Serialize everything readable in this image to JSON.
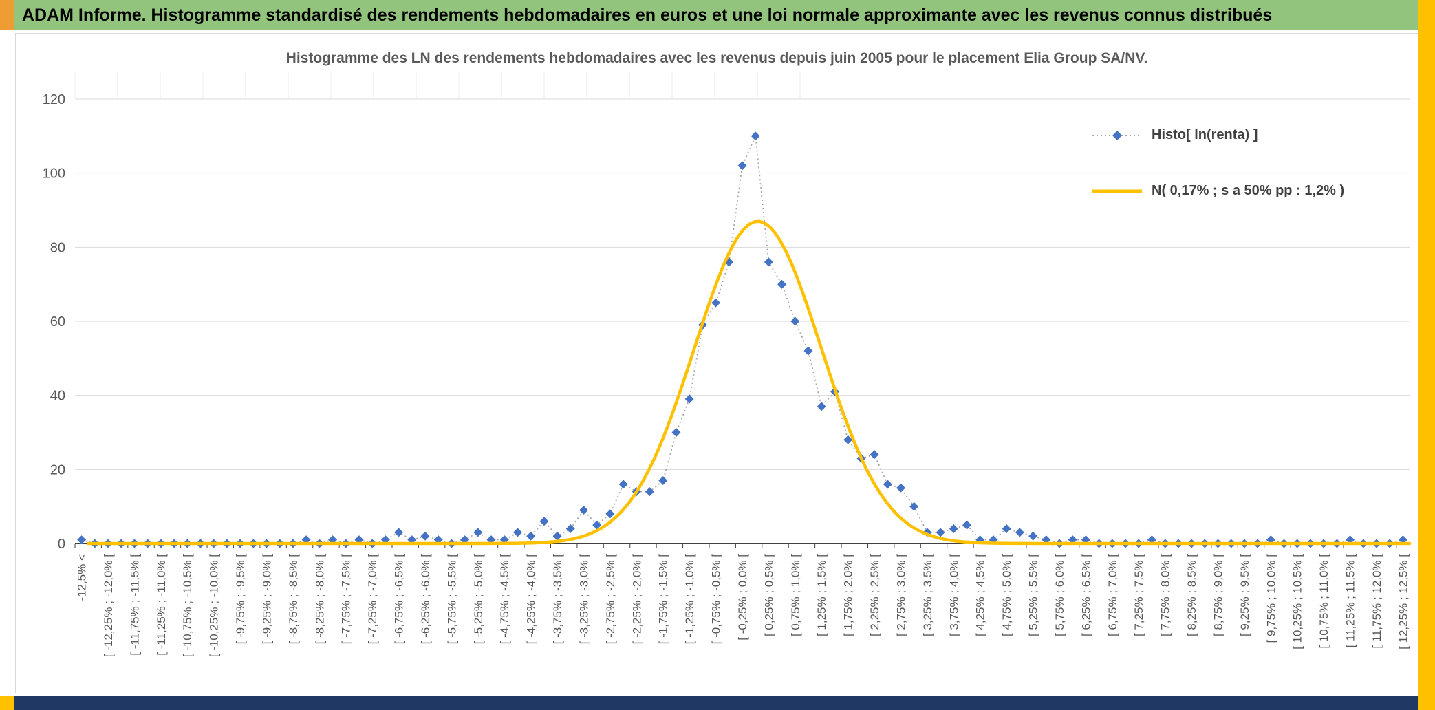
{
  "banner": {
    "title": "ADAM Informe. Histogramme standardisé des rendements hebdomadaires en euros et une loi normale approximante avec les revenus connus distribués"
  },
  "colors": {
    "banner_green": "#93C47D",
    "corner_orange": "#ED9D31",
    "strip_yellow": "#FFC000",
    "bottom_navy": "#1F3864",
    "gridline_gray": "#D9D9D9",
    "axis_black": "#000000",
    "label_gray": "#595959",
    "histogram_marker_blue": "#4472C4",
    "histogram_line_gray": "#A6A6A6",
    "normal_curve_yellow": "#FFC000"
  },
  "chart_data": {
    "type": "line",
    "title": "Histogramme des LN des rendements hebdomadaires avec les revenus depuis juin 2005 pour le placement Elia Group SA/NV.",
    "xlabel": "",
    "ylabel": "",
    "ylim": [
      0,
      120
    ],
    "y_ticks": [
      0,
      20,
      40,
      60,
      80,
      100,
      120
    ],
    "grid": "horizontal",
    "legend_position": "top-right",
    "bin_width_pct": 0.25,
    "x_label_bin_step": 2,
    "x_labels": [
      "-12,5% <",
      "[ -12,25% ; -12,0% [",
      "[ -11,75% ; -11,5% [",
      "[ -11,25% ; -11,0% [",
      "[ -10,75% ; -10,5% [",
      "[ -10,25% ; -10,0% [",
      "[ -9,75% ; -9,5% [",
      "[ -9,25% ; -9,0% [",
      "[ -8,75% ; -8,5% [",
      "[ -8,25% ; -8,0% [",
      "[ -7,75% ; -7,5% [",
      "[ -7,25% ; -7,0% [",
      "[ -6,75% ; -6,5% [",
      "[ -6,25% ; -6,0% [",
      "[ -5,75% ; -5,5% [",
      "[ -5,25% ; -5,0% [",
      "[ -4,75% ; -4,5% [",
      "[ -4,25% ; -4,0% [",
      "[ -3,75% ; -3,5% [",
      "[ -3,25% ; -3,0% [",
      "[ -2,75% ; -2,5% [",
      "[ -2,25% ; -2,0% [",
      "[ -1,75% ; -1,5% [",
      "[ -1,25% ; -1,0% [",
      "[ -0,75% ; -0,5% [",
      "[ -0,25% ; 0,0% [",
      "[ 0,25% ; 0,5% [",
      "[ 0,75% ; 1,0% [",
      "[ 1,25% ; 1,5% [",
      "[ 1,75% ; 2,0% [",
      "[ 2,25% ; 2,5% [",
      "[ 2,75% ; 3,0% [",
      "[ 3,25% ; 3,5% [",
      "[ 3,75% ; 4,0% [",
      "[ 4,25% ; 4,5% [",
      "[ 4,75% ; 5,0% [",
      "[ 5,25% ; 5,5% [",
      "[ 5,75% ; 6,0% [",
      "[ 6,25% ; 6,5% [",
      "[ 6,75% ; 7,0% [",
      "[ 7,25% ; 7,5% [",
      "[ 7,75% ; 8,0% [",
      "[ 8,25% ; 8,5% [",
      "[ 8,75% ; 9,0% [",
      "[ 9,25% ; 9,5% [",
      "[ 9,75% ; 10,0% [",
      "[ 10,25% ; 10,5% [",
      "[ 10,75% ; 11,0% [",
      "[ 11,25% ; 11,5% [",
      "[ 11,75% ; 12,0% [",
      "[ 12,25% ; 12,5% ["
    ],
    "series": [
      {
        "name": "Histo[ ln(renta) ]",
        "style": "dotted line with diamond markers",
        "marker": "diamond",
        "marker_color": "#4472C4",
        "line_color": "#A6A6A6",
        "values": [
          1,
          0,
          0,
          0,
          0,
          0,
          0,
          0,
          0,
          0,
          0,
          0,
          0,
          0,
          0,
          0,
          0,
          1,
          0,
          1,
          0,
          1,
          0,
          1,
          3,
          1,
          2,
          1,
          0,
          1,
          3,
          1,
          1,
          3,
          2,
          6,
          2,
          4,
          9,
          5,
          8,
          16,
          14,
          14,
          17,
          30,
          39,
          59,
          65,
          76,
          102,
          110,
          76,
          70,
          60,
          52,
          37,
          41,
          28,
          23,
          24,
          16,
          15,
          10,
          3,
          3,
          4,
          5,
          1,
          1,
          4,
          3,
          2,
          1,
          0,
          1,
          1,
          0,
          0,
          0,
          0,
          1,
          0,
          0,
          0,
          0,
          0,
          0,
          0,
          0,
          1,
          0,
          0,
          0,
          0,
          0,
          1,
          0,
          0,
          0,
          1
        ]
      },
      {
        "name": "N( 0,17% ; s a 50% pp : 1,2% )",
        "style": "smooth bell curve",
        "color": "#FFC000",
        "mean_pct": 0.17,
        "sd_pct": 1.2,
        "peak_y": 87
      }
    ]
  }
}
